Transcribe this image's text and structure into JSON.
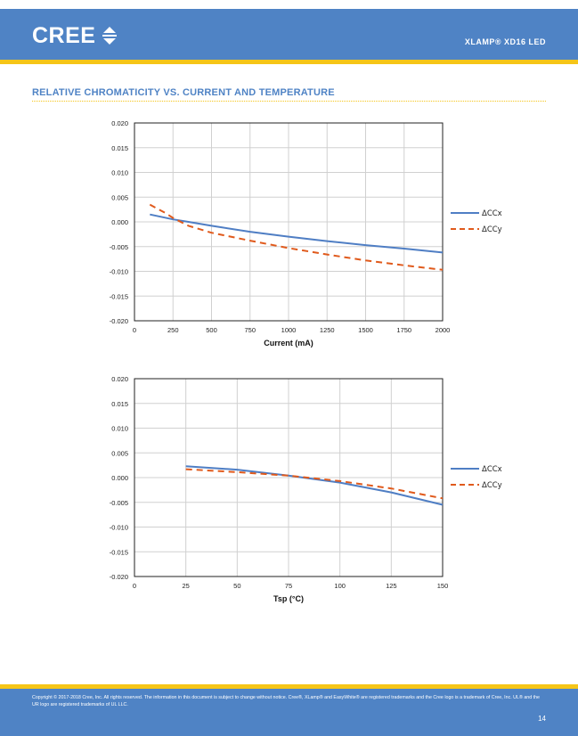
{
  "header": {
    "brand": "CREE",
    "doc_title": "XLAMP® XD16 LED",
    "band_color": "#4f83c5",
    "accent_color": "#f5c518"
  },
  "section": {
    "title": "RELATIVE CHROMATICITY VS. CURRENT AND TEMPERATURE"
  },
  "chart_data": [
    {
      "type": "line",
      "xlabel": "Current (mA)",
      "ylabel": "",
      "xlim": [
        0,
        2000
      ],
      "ylim": [
        -0.02,
        0.02
      ],
      "x_ticks": [
        0,
        250,
        500,
        750,
        1000,
        1250,
        1500,
        1750,
        2000
      ],
      "x_tick_labels": [
        "0",
        "250",
        "500",
        "750",
        "1000",
        "1250",
        "1500",
        "1750",
        "2000"
      ],
      "y_ticks": [
        0.02,
        0.015,
        0.01,
        0.005,
        0.0,
        -0.005,
        -0.01,
        -0.015,
        -0.02
      ],
      "y_tick_labels": [
        "0.020",
        "0.015",
        "0.010",
        "0.005",
        "0.000",
        "-0.005",
        "-0.010",
        "-0.015",
        "-0.020"
      ],
      "grid": true,
      "legend": "right",
      "series": [
        {
          "name": "ΔCCx",
          "color": "#4f7ec4",
          "dash": "solid",
          "x": [
            100,
            250,
            350,
            500,
            750,
            1000,
            1250,
            1500,
            1750,
            2000
          ],
          "y": [
            0.0015,
            0.0005,
            0.0,
            -0.0008,
            -0.002,
            -0.003,
            -0.0039,
            -0.0047,
            -0.0054,
            -0.0062
          ]
        },
        {
          "name": "ΔCCy",
          "color": "#e05a1c",
          "dash": "dashed",
          "x": [
            100,
            200,
            250,
            350,
            500,
            750,
            1000,
            1250,
            1500,
            1750,
            2000
          ],
          "y": [
            0.0035,
            0.0018,
            0.0008,
            -0.0008,
            -0.0022,
            -0.0038,
            -0.0053,
            -0.0066,
            -0.0078,
            -0.0088,
            -0.0097
          ]
        }
      ]
    },
    {
      "type": "line",
      "xlabel": "Tsp (°C)",
      "ylabel": "",
      "xlim": [
        0,
        150
      ],
      "ylim": [
        -0.02,
        0.02
      ],
      "x_ticks": [
        0,
        25,
        50,
        75,
        100,
        125,
        150
      ],
      "x_tick_labels": [
        "0",
        "25",
        "50",
        "75",
        "100",
        "125",
        "150"
      ],
      "y_ticks": [
        0.02,
        0.015,
        0.01,
        0.005,
        0.0,
        -0.005,
        -0.01,
        -0.015,
        -0.02
      ],
      "y_tick_labels": [
        "0.020",
        "0.015",
        "0.010",
        "0.005",
        "0.000",
        "-0.005",
        "-0.010",
        "-0.015",
        "-0.020"
      ],
      "grid": true,
      "legend": "right",
      "series": [
        {
          "name": "ΔCCx",
          "color": "#4f7ec4",
          "dash": "solid",
          "x": [
            25,
            50,
            75,
            100,
            125,
            150
          ],
          "y": [
            0.0023,
            0.0016,
            0.0004,
            -0.001,
            -0.003,
            -0.0055
          ]
        },
        {
          "name": "ΔCCy",
          "color": "#e05a1c",
          "dash": "dashed",
          "x": [
            25,
            50,
            75,
            100,
            125,
            150
          ],
          "y": [
            0.0017,
            0.0011,
            0.0004,
            -0.0007,
            -0.0022,
            -0.0042
          ]
        }
      ]
    }
  ],
  "footer": {
    "copyright": "Copyright © 2017-2018 Cree, Inc. All rights reserved. The information in this document is subject to change without notice. Cree®, XLamp® and EasyWhite® are registered trademarks and the Cree logo is a trademark of Cree, Inc. UL® and the UR logo are registered trademarks of UL LLC.",
    "page_number": "14"
  }
}
